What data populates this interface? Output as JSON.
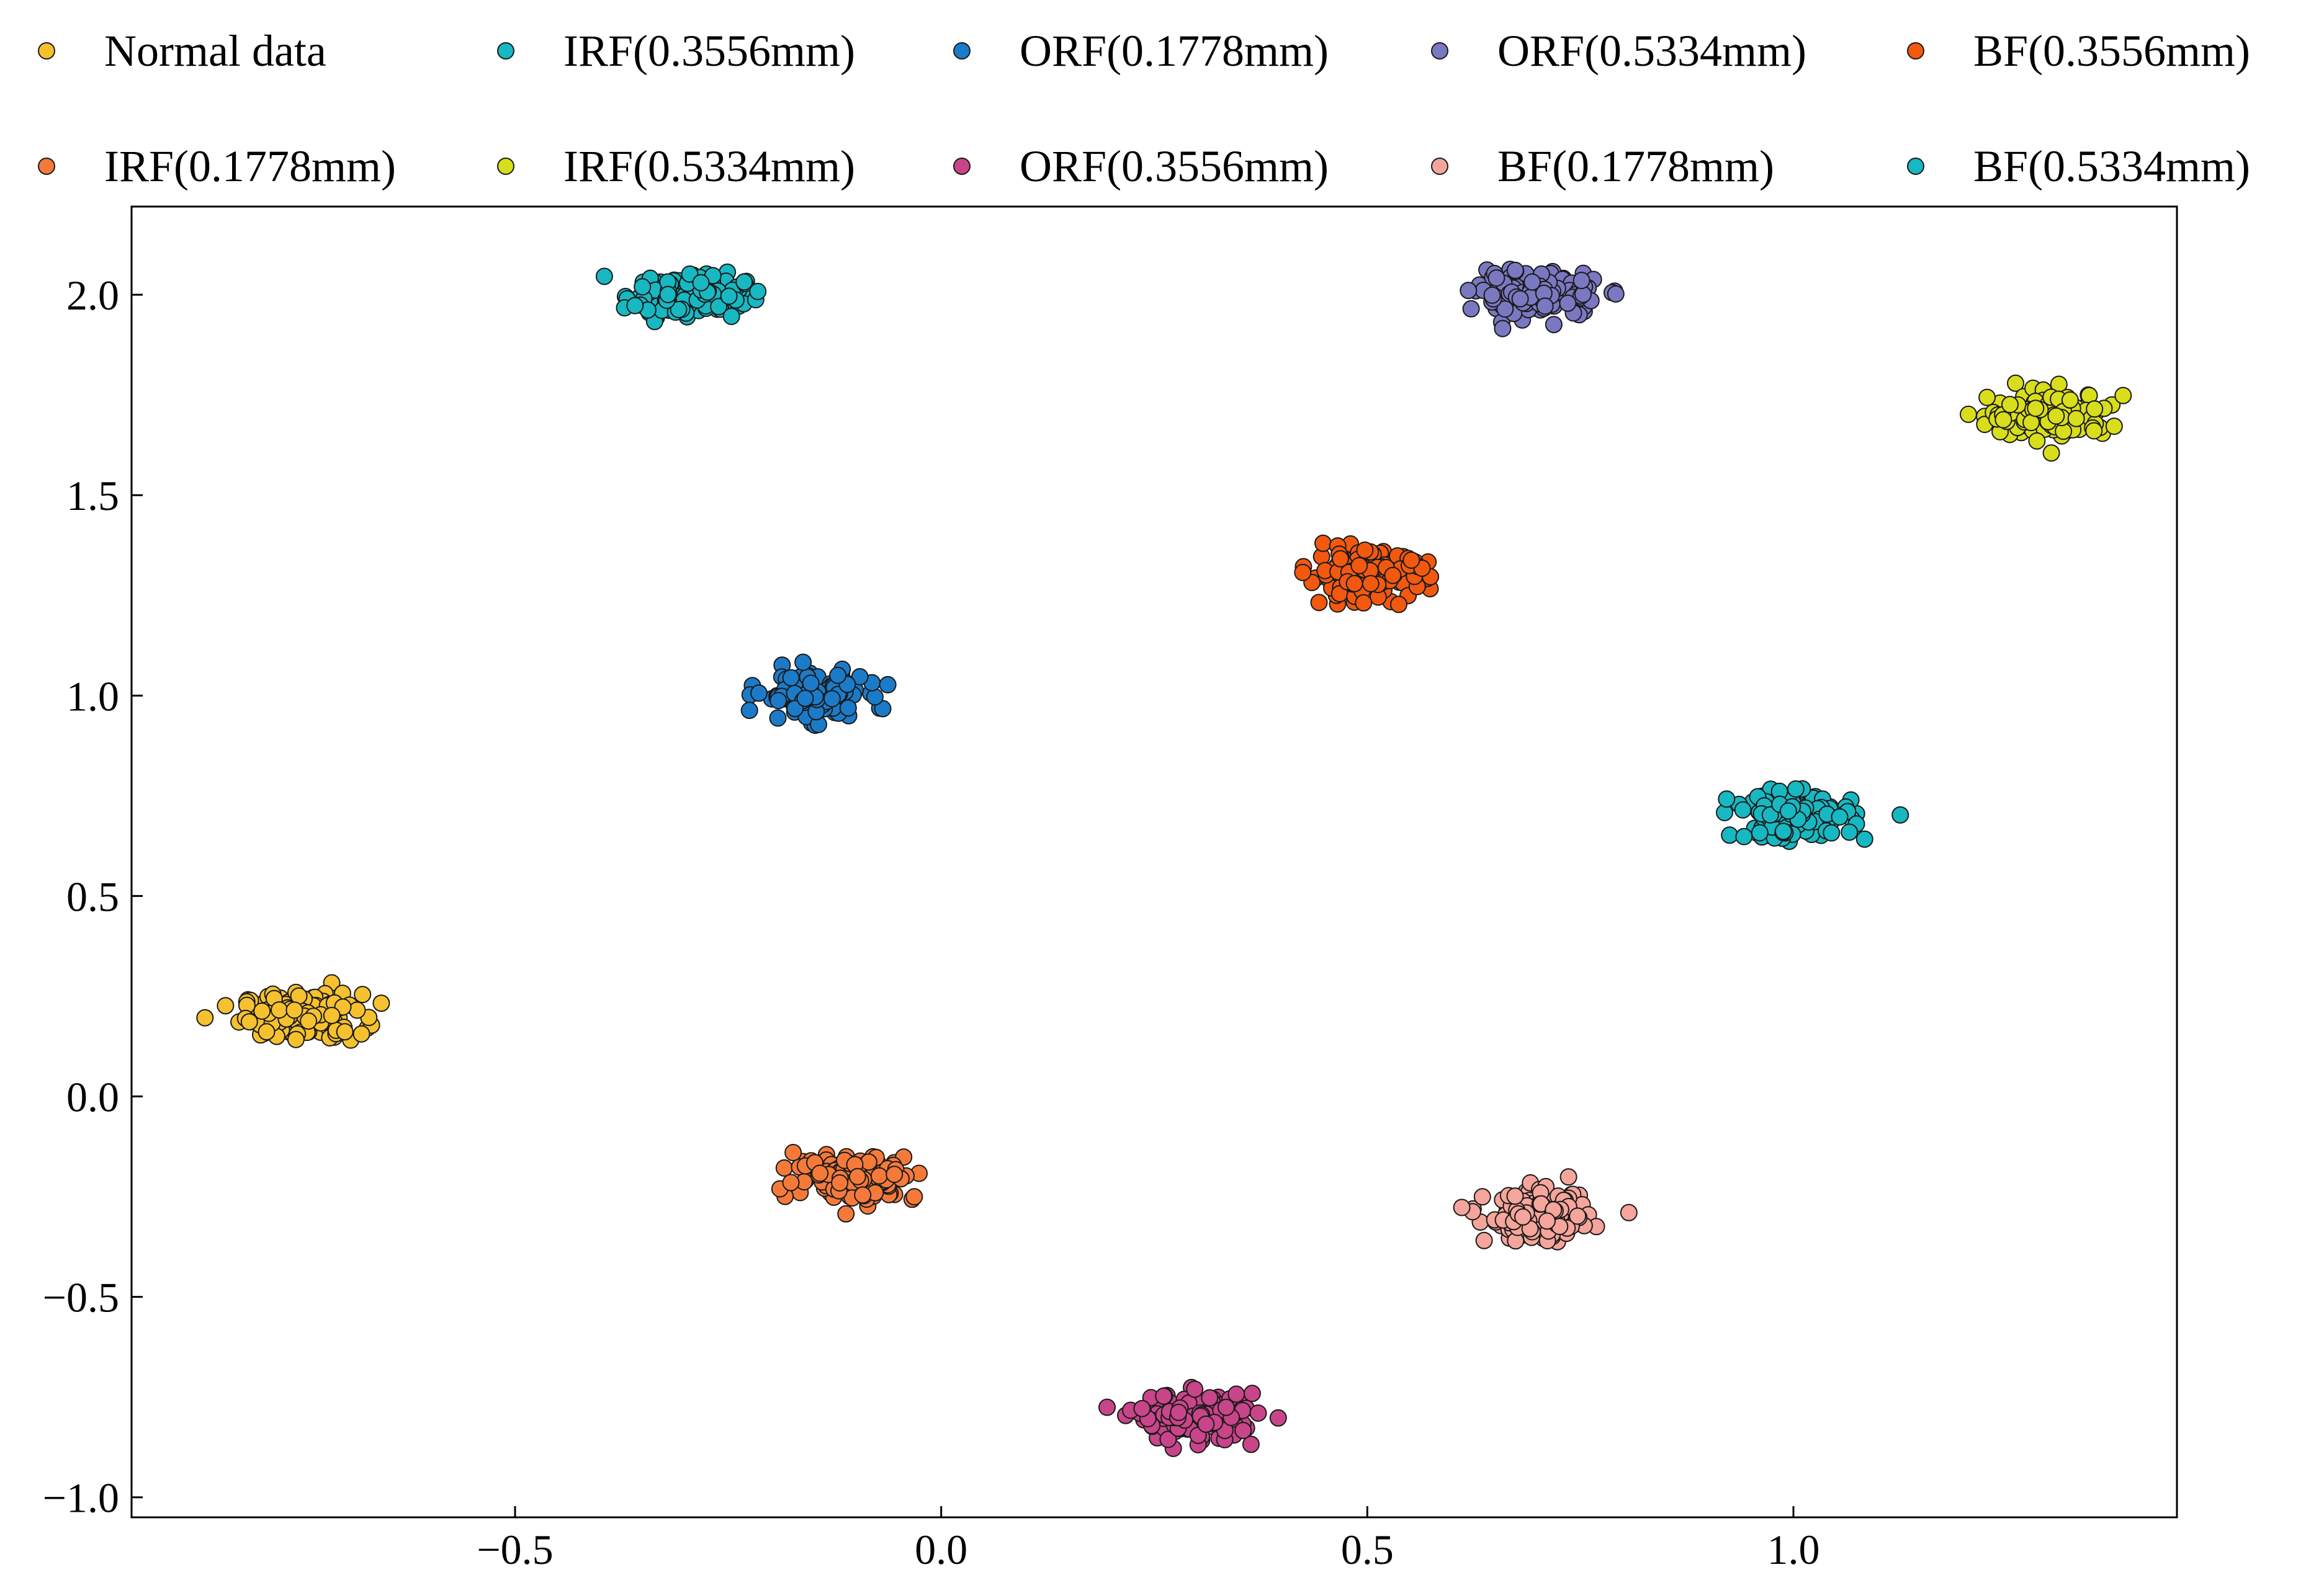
{
  "chart_data": {
    "type": "scatter",
    "title": "",
    "xlabel": "",
    "ylabel": "",
    "xlim": [
      -0.95,
      1.45
    ],
    "ylim": [
      -1.05,
      2.22
    ],
    "xticks": [
      -0.5,
      0.0,
      0.5,
      1.0
    ],
    "yticks": [
      -1.0,
      -0.5,
      0.0,
      0.5,
      1.0,
      1.5,
      2.0
    ],
    "xtick_labels": [
      "−0.5",
      "0.0",
      "0.5",
      "1.0"
    ],
    "ytick_labels": [
      "−1.0",
      "−0.5",
      "0.0",
      "0.5",
      "1.0",
      "1.5",
      "2.0"
    ],
    "grid": false,
    "legend_position": "top",
    "legend_columns": 5,
    "series": [
      {
        "name": "Normal data",
        "color": "#F6C12E",
        "center": [
          -0.75,
          0.2
        ],
        "spread": [
          0.035,
          0.028
        ],
        "points": 150
      },
      {
        "name": "IRF(0.3556mm)",
        "color": "#17B8C2",
        "center": [
          -0.3,
          2.0
        ],
        "spread": [
          0.035,
          0.028
        ],
        "points": 150
      },
      {
        "name": "ORF(0.1778mm)",
        "color": "#1C7BC8",
        "center": [
          -0.15,
          1.0
        ],
        "spread": [
          0.03,
          0.028
        ],
        "points": 150
      },
      {
        "name": "ORF(0.5334mm)",
        "color": "#7B78C2",
        "center": [
          0.7,
          2.0
        ],
        "spread": [
          0.035,
          0.028
        ],
        "points": 150
      },
      {
        "name": "BF(0.3556mm)",
        "color": "#F2590F",
        "center": [
          0.5,
          1.3
        ],
        "spread": [
          0.035,
          0.028
        ],
        "points": 150
      },
      {
        "name": "IRF(0.1778mm)",
        "color": "#F57A3A",
        "center": [
          -0.1,
          -0.2
        ],
        "spread": [
          0.035,
          0.028
        ],
        "points": 150
      },
      {
        "name": "IRF(0.5334mm)",
        "color": "#D8DD1C",
        "center": [
          1.3,
          1.7
        ],
        "spread": [
          0.035,
          0.028
        ],
        "points": 150
      },
      {
        "name": "ORF(0.3556mm)",
        "color": "#C8458A",
        "center": [
          0.3,
          -0.8
        ],
        "spread": [
          0.035,
          0.028
        ],
        "points": 150
      },
      {
        "name": "BF(0.1778mm)",
        "color": "#F5A59B",
        "center": [
          0.7,
          -0.3
        ],
        "spread": [
          0.03,
          0.03
        ],
        "points": 150
      },
      {
        "name": "BF(0.5334mm)",
        "color": "#17B8C2",
        "center": [
          1.0,
          0.7
        ],
        "spread": [
          0.035,
          0.028
        ],
        "points": 150
      }
    ]
  }
}
